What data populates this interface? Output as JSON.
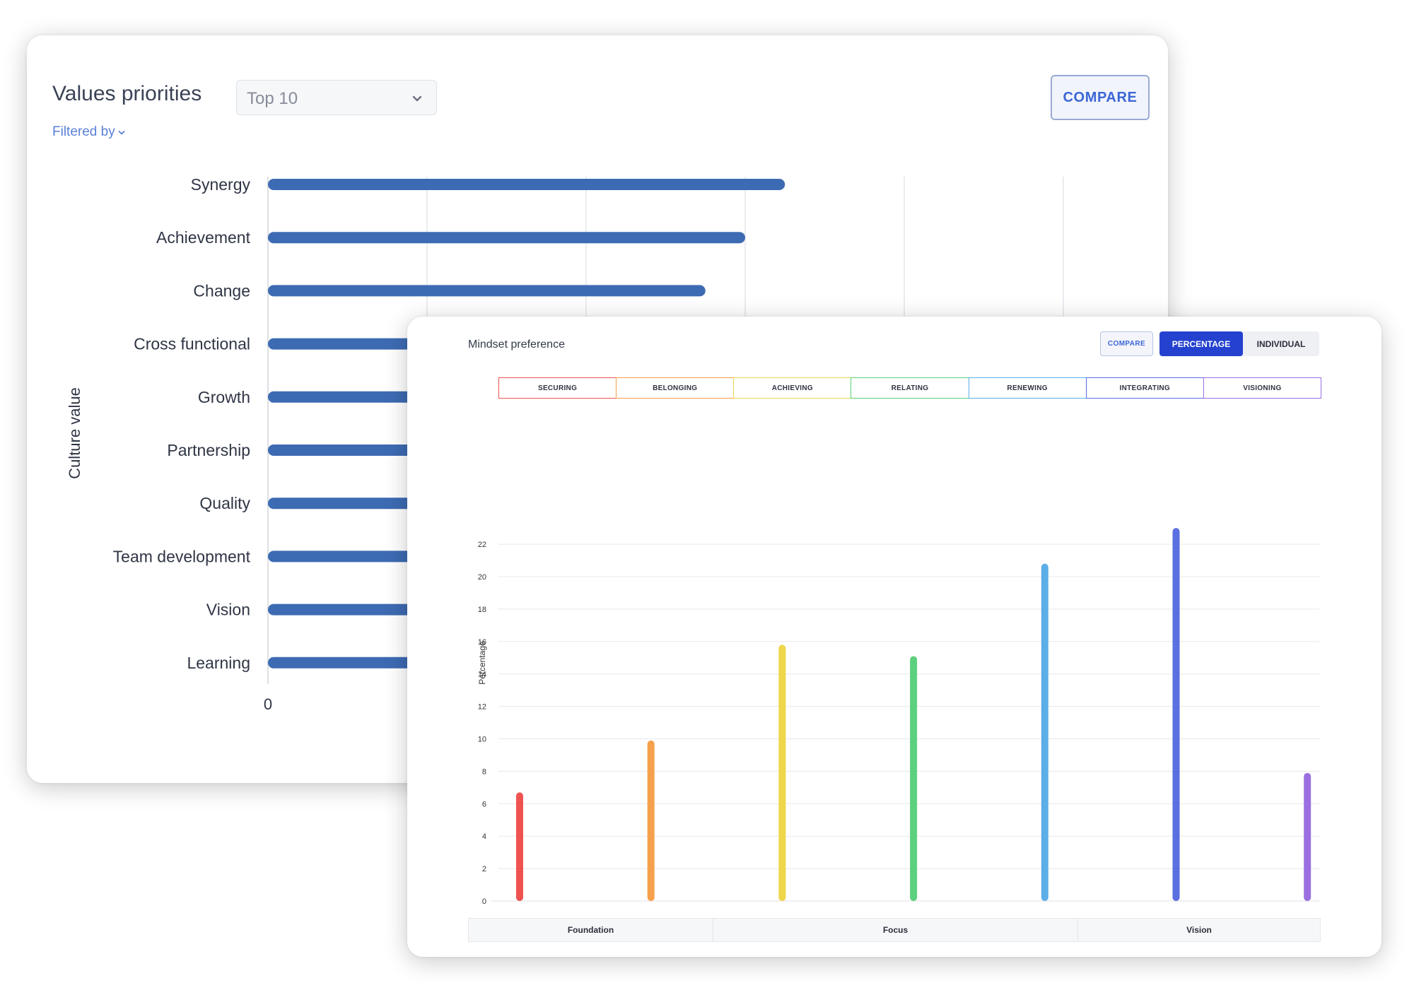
{
  "values_card": {
    "title": "Values priorities",
    "top_select": {
      "value": "Top 10",
      "icon": "chevron-down-icon"
    },
    "filter_link": {
      "label": "Filtered by",
      "icon": "chevron-down-icon"
    },
    "compare_button": "COMPARE"
  },
  "mindset_card": {
    "title": "Mindset preference",
    "compare_button": "COMPARE",
    "view_toggle": {
      "options": [
        "PERCENTAGE",
        "INDIVIDUAL"
      ],
      "selected": "PERCENTAGE"
    },
    "legend": [
      {
        "label": "SECURING",
        "color": "#ef5350"
      },
      {
        "label": "BELONGING",
        "color": "#f7a04b"
      },
      {
        "label": "ACHIEVING",
        "color": "#efd64a"
      },
      {
        "label": "RELATING",
        "color": "#5dd07f"
      },
      {
        "label": "RENEWING",
        "color": "#5caee8"
      },
      {
        "label": "INTEGRATING",
        "color": "#5a6fe0"
      },
      {
        "label": "VISIONING",
        "color": "#9b6fe0"
      }
    ],
    "groups": [
      "Foundation",
      "Focus",
      "Vision"
    ]
  },
  "chart_data": [
    {
      "type": "bar",
      "orientation": "horizontal",
      "ylabel": "Culture value",
      "xlabel": "",
      "categories": [
        "Synergy",
        "Achievement",
        "Change",
        "Cross functional",
        "Growth",
        "Partnership",
        "Quality",
        "Team development",
        "Vision",
        "Learning"
      ],
      "values": [
        32.5,
        30,
        27.5,
        null,
        null,
        null,
        null,
        null,
        null,
        null
      ],
      "x_ticks_visible": [
        "0"
      ],
      "xlim": [
        0,
        60
      ],
      "grid": true,
      "color": "#3d6bb3"
    },
    {
      "type": "bar",
      "title": "Mindset preference",
      "ylabel": "Percentage",
      "xlabel": "",
      "categories": [
        "SECURING",
        "BELONGING",
        "ACHIEVING",
        "RELATING",
        "RENEWING",
        "INTEGRATING",
        "VISIONING"
      ],
      "values": [
        6.7,
        9.9,
        15.8,
        15.1,
        20.8,
        23.0,
        7.9
      ],
      "colors": [
        "#ef5350",
        "#f7a04b",
        "#efd64a",
        "#5dd07f",
        "#5caee8",
        "#5a6fe0",
        "#9b6fe0"
      ],
      "y_ticks": [
        0,
        2,
        4,
        6,
        8,
        10,
        12,
        14,
        16,
        18,
        20,
        22
      ],
      "ylim": [
        0,
        23
      ],
      "grid": true
    }
  ]
}
